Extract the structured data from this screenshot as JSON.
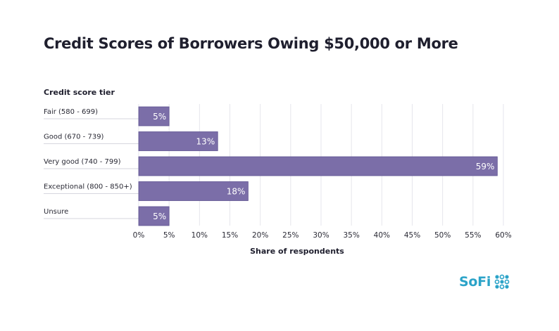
{
  "page": {
    "title": "Credit Scores of Borrowers Owing $50,000 or More",
    "logo_text": "SoFi"
  },
  "chart_data": {
    "type": "bar",
    "orientation": "horizontal",
    "title": "Credit Scores of Borrowers Owing $50,000 or More",
    "ylabel": "Credit score tier",
    "xlabel": "Share of respondents",
    "categories": [
      "Fair (580 - 699)",
      "Good (670 - 739)",
      "Very good (740 - 799)",
      "Exceptional (800 - 850+)",
      "Unsure"
    ],
    "values": [
      5,
      13,
      59,
      18,
      5
    ],
    "data_labels": [
      "5%",
      "13%",
      "59%",
      "18%",
      "5%"
    ],
    "xlim": [
      0,
      60
    ],
    "xticks": [
      0,
      5,
      10,
      15,
      20,
      25,
      30,
      35,
      40,
      45,
      50,
      55,
      60
    ],
    "xtick_labels": [
      "0%",
      "5%",
      "10%",
      "15%",
      "20%",
      "25%",
      "30%",
      "35%",
      "40%",
      "45%",
      "50%",
      "55%",
      "60%"
    ],
    "grid": "vertical",
    "colors": {
      "bar": "#7b6ea8",
      "bar_stroke": "#5e5391",
      "label": "#ffffff",
      "grid": "#e6e6ec",
      "text": "#2a2a35"
    }
  }
}
